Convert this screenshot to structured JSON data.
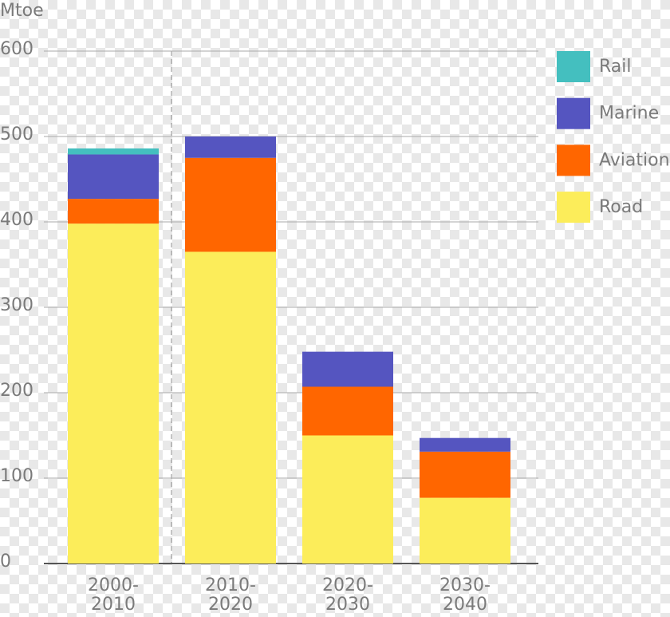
{
  "chart_data": {
    "type": "stacked-bar",
    "y_label": "Mtoe",
    "categories": [
      "2000-2010",
      "2010-2020",
      "2020-2030",
      "2030-2040"
    ],
    "series": [
      {
        "name": "Road",
        "color": "#fced5a",
        "values": [
          398,
          365,
          150,
          77
        ]
      },
      {
        "name": "Aviation",
        "color": "#ff6600",
        "values": [
          29,
          110,
          57,
          54
        ]
      },
      {
        "name": "Marine",
        "color": "#5555c0",
        "values": [
          52,
          25,
          41,
          16
        ]
      },
      {
        "name": "Rail",
        "color": "#44bfbf",
        "values": [
          7,
          0,
          0,
          0
        ]
      }
    ],
    "ylim": [
      0,
      600
    ],
    "yticks": [
      0,
      100,
      200,
      300,
      400,
      500,
      600
    ],
    "grid": true,
    "legend": "right"
  }
}
